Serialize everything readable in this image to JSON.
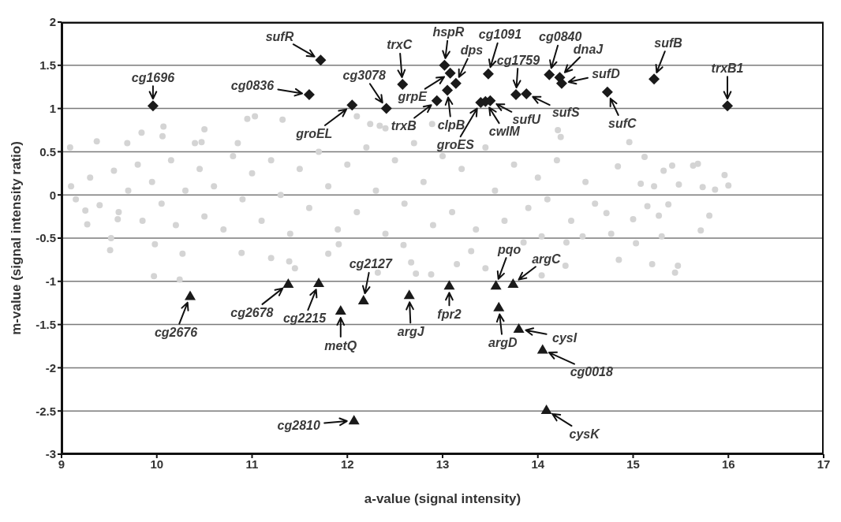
{
  "chart_data": {
    "type": "scatter",
    "xlabel": "a-value (signal intensity)",
    "ylabel": "m-value (signal intensity ratio)",
    "xlim": [
      9,
      17
    ],
    "xticks": [
      9,
      10,
      11,
      12,
      13,
      14,
      15,
      16,
      17
    ],
    "ylim": [
      -3,
      2
    ],
    "yticks": [
      -3,
      -2.5,
      -2,
      -1.5,
      -1,
      -0.5,
      0,
      0.5,
      1,
      1.5,
      2
    ],
    "grid": "y",
    "series": [
      {
        "color": "#d4d4d4",
        "marker": "circle",
        "x": [
          9.09,
          9.37,
          9.69,
          9.84,
          10.07,
          10.06,
          10.5,
          10.4,
          10.47,
          10.85,
          10.95,
          11.03,
          11.32,
          12.1,
          12.24,
          12.34,
          12.4,
          12.89,
          14.21,
          14.24,
          14.96,
          15.12,
          15.41,
          15.68,
          15.96,
          16.0,
          15.86,
          15.73,
          15.48,
          15.22,
          15.08,
          14.84,
          15.32,
          15.63,
          15.8,
          15.71,
          15.37,
          15.27,
          15.3,
          15.03,
          15.2,
          15.47,
          15.44,
          14.85,
          15.0,
          15.15,
          14.72,
          14.77,
          14.47,
          14.3,
          14.29,
          14.04,
          13.15,
          13.3,
          13.45,
          13.85,
          14.04,
          9.27,
          9.52,
          9.51,
          9.98,
          9.97,
          10.24,
          10.27,
          10.89,
          11.2,
          11.39,
          11.45,
          11.8,
          11.91,
          12.32,
          12.67,
          12.72,
          12.88,
          12.59,
          9.25,
          9.59,
          9.1,
          9.15,
          9.3,
          9.4,
          9.55,
          9.6,
          9.7,
          9.8,
          9.85,
          9.95,
          10.05,
          10.15,
          10.2,
          10.3,
          10.45,
          10.5,
          10.6,
          10.7,
          10.8,
          10.9,
          11.0,
          11.1,
          11.2,
          11.3,
          11.4,
          11.5,
          11.6,
          11.7,
          11.8,
          11.9,
          12.0,
          12.1,
          12.2,
          12.3,
          12.4,
          12.5,
          12.6,
          12.7,
          12.8,
          12.9,
          13.0,
          13.1,
          13.2,
          13.35,
          13.45,
          13.55,
          13.65,
          13.75,
          13.9,
          14.0,
          14.1,
          14.2,
          14.35,
          14.5,
          14.6
        ],
        "values": [
          0.55,
          0.62,
          0.6,
          0.72,
          0.79,
          0.68,
          0.76,
          0.6,
          0.61,
          0.6,
          0.88,
          0.91,
          0.87,
          0.91,
          0.82,
          0.8,
          0.77,
          0.82,
          0.75,
          0.67,
          0.61,
          0.44,
          0.34,
          0.36,
          0.23,
          0.11,
          0.06,
          0.09,
          0.12,
          0.1,
          0.13,
          0.33,
          0.28,
          0.34,
          -0.24,
          -0.41,
          -0.11,
          -0.24,
          -0.48,
          -0.56,
          -0.8,
          -0.82,
          -0.9,
          -0.75,
          -0.28,
          -0.13,
          -0.21,
          -0.45,
          -0.48,
          -0.55,
          -0.82,
          -0.93,
          -0.8,
          -0.65,
          -0.85,
          -0.55,
          -0.48,
          -0.34,
          -0.5,
          -0.64,
          -0.57,
          -0.94,
          -0.98,
          -0.68,
          -0.67,
          -0.73,
          -0.77,
          -0.85,
          -0.68,
          -0.57,
          -0.9,
          -0.78,
          -0.91,
          -0.92,
          -0.58,
          -0.18,
          -0.28,
          0.1,
          -0.05,
          0.2,
          -0.12,
          0.28,
          -0.2,
          0.05,
          0.35,
          -0.3,
          0.15,
          -0.1,
          0.4,
          -0.35,
          0.05,
          0.3,
          -0.25,
          0.1,
          -0.4,
          0.45,
          -0.05,
          0.25,
          -0.3,
          0.4,
          0.0,
          -0.45,
          0.3,
          -0.15,
          0.5,
          0.1,
          -0.4,
          0.35,
          -0.2,
          0.55,
          0.05,
          -0.45,
          0.4,
          -0.1,
          0.6,
          0.15,
          -0.35,
          0.45,
          -0.2,
          0.3,
          -0.4,
          0.55,
          0.05,
          -0.3,
          0.35,
          -0.15,
          0.2,
          -0.05,
          0.4,
          -0.3,
          0.15,
          -0.1
        ]
      },
      {
        "color": "#1a1a1a",
        "marker": "diamond",
        "x": [
          9.96,
          11.72,
          11.6,
          12.05,
          12.41,
          12.58,
          12.94,
          13.02,
          13.08,
          13.14,
          13.05,
          13.48,
          13.4,
          13.45,
          13.5,
          13.77,
          13.88,
          14.12,
          14.23,
          14.25,
          14.73,
          15.22,
          15.99
        ],
        "values": [
          1.03,
          1.56,
          1.16,
          1.04,
          1.0,
          1.28,
          1.09,
          1.5,
          1.41,
          1.29,
          1.21,
          1.4,
          1.07,
          1.08,
          1.09,
          1.16,
          1.17,
          1.39,
          1.36,
          1.29,
          1.19,
          1.34,
          1.03
        ]
      },
      {
        "color": "#1a1a1a",
        "marker": "triangle",
        "x": [
          10.35,
          11.38,
          11.7,
          11.93,
          12.17,
          12.07,
          12.65,
          13.07,
          13.56,
          13.74,
          13.59,
          13.8,
          14.05,
          14.09
        ],
        "values": [
          -1.17,
          -1.03,
          -1.02,
          -1.34,
          -1.22,
          -2.61,
          -1.16,
          -1.05,
          -1.05,
          -1.03,
          -1.3,
          -1.55,
          -1.79,
          -2.49
        ]
      }
    ],
    "annotations": [
      {
        "text": "cg1696",
        "x": 9.96,
        "y": 1.03
      },
      {
        "text": "sufR",
        "x": 11.72,
        "y": 1.56
      },
      {
        "text": "cg0836",
        "x": 11.6,
        "y": 1.16
      },
      {
        "text": "groEL",
        "x": 12.05,
        "y": 1.04
      },
      {
        "text": "cg3078",
        "x": 12.41,
        "y": 1.0
      },
      {
        "text": "trxC",
        "x": 12.58,
        "y": 1.28
      },
      {
        "text": "trxB",
        "x": 12.94,
        "y": 1.09
      },
      {
        "text": "hspR",
        "x": 13.02,
        "y": 1.5
      },
      {
        "text": "grpE",
        "x": 13.08,
        "y": 1.41
      },
      {
        "text": "dps",
        "x": 13.14,
        "y": 1.29
      },
      {
        "text": "clpB",
        "x": 13.05,
        "y": 1.21
      },
      {
        "text": "cg1091",
        "x": 13.48,
        "y": 1.4
      },
      {
        "text": "groES",
        "x": 13.4,
        "y": 1.07
      },
      {
        "text": "cwlM",
        "x": 13.45,
        "y": 1.08
      },
      {
        "text": "sufU",
        "x": 13.5,
        "y": 1.09
      },
      {
        "text": "cg1759",
        "x": 13.77,
        "y": 1.16
      },
      {
        "text": "sufS",
        "x": 13.88,
        "y": 1.17
      },
      {
        "text": "cg0840",
        "x": 14.12,
        "y": 1.39
      },
      {
        "text": "dnaJ",
        "x": 14.23,
        "y": 1.36
      },
      {
        "text": "sufD",
        "x": 14.25,
        "y": 1.29
      },
      {
        "text": "sufC",
        "x": 14.73,
        "y": 1.19
      },
      {
        "text": "sufB",
        "x": 15.22,
        "y": 1.34
      },
      {
        "text": "trxB1",
        "x": 15.99,
        "y": 1.03
      },
      {
        "text": "cg2676",
        "x": 10.35,
        "y": -1.17
      },
      {
        "text": "cg2678",
        "x": 11.38,
        "y": -1.03
      },
      {
        "text": "cg2215",
        "x": 11.7,
        "y": -1.02
      },
      {
        "text": "metQ",
        "x": 11.93,
        "y": -1.34
      },
      {
        "text": "cg2127",
        "x": 12.17,
        "y": -1.22
      },
      {
        "text": "cg2810",
        "x": 12.07,
        "y": -2.61
      },
      {
        "text": "argJ",
        "x": 12.65,
        "y": -1.16
      },
      {
        "text": "fpr2",
        "x": 13.07,
        "y": -1.05
      },
      {
        "text": "pqo",
        "x": 13.56,
        "y": -1.05
      },
      {
        "text": "argC",
        "x": 13.74,
        "y": -1.03
      },
      {
        "text": "argD",
        "x": 13.59,
        "y": -1.3
      },
      {
        "text": "cysI",
        "x": 13.8,
        "y": -1.55
      },
      {
        "text": "cg0018",
        "x": 14.05,
        "y": -1.79
      },
      {
        "text": "cysK",
        "x": 14.09,
        "y": -2.49
      }
    ]
  }
}
